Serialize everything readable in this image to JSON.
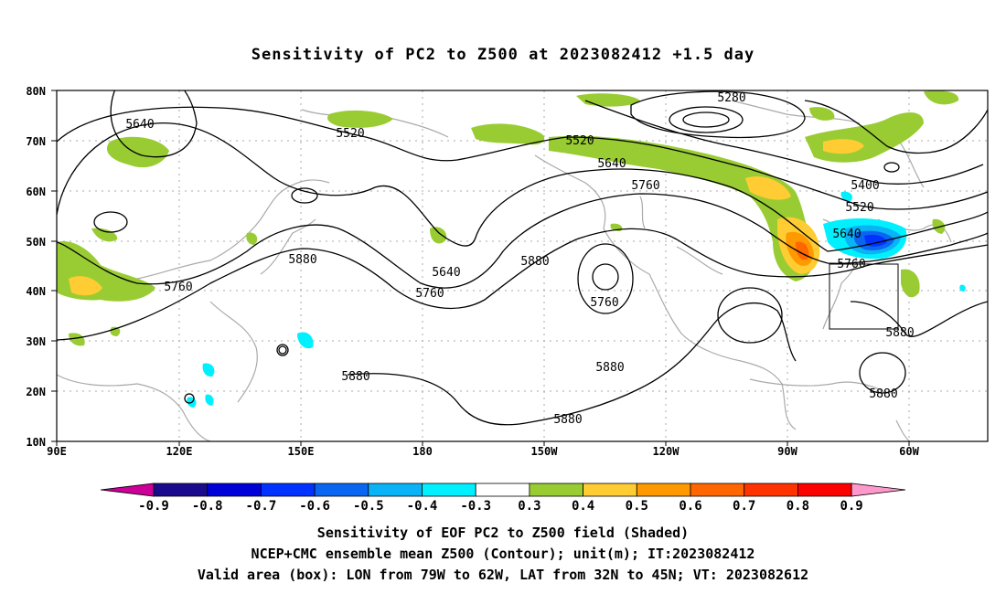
{
  "title": "Sensitivity of PC2 to Z500 at 2023082412 +1.5 day",
  "lat_labels": [
    "80N",
    "70N",
    "60N",
    "50N",
    "40N",
    "30N",
    "20N",
    "10N"
  ],
  "lon_labels": [
    "90E",
    "120E",
    "150E",
    "180",
    "150W",
    "120W",
    "90W",
    "60W"
  ],
  "contour_labels": [
    "5280",
    "5640",
    "5520",
    "5520",
    "5400",
    "5640",
    "5520",
    "5760",
    "5640",
    "5880",
    "5880",
    "5640",
    "5760",
    "5760",
    "5760",
    "5760",
    "5880",
    "5880",
    "5880",
    "5880",
    "5880"
  ],
  "colorbar": {
    "labels": [
      "-0.9",
      "-0.8",
      "-0.7",
      "-0.6",
      "-0.5",
      "-0.4",
      "-0.3",
      "0.3",
      "0.4",
      "0.5",
      "0.6",
      "0.7",
      "0.8",
      "0.9"
    ],
    "colors": [
      "#1a0a8c",
      "#0000d8",
      "#0033ff",
      "#0a66f0",
      "#0ab3f5",
      "#00f0ff",
      "#ffffff",
      "#99cc33",
      "#ffcc33",
      "#ff9900",
      "#ff6600",
      "#ff3300",
      "#ff0000"
    ],
    "low_end_color": "#cc0099",
    "high_end_color": "#ff99cc"
  },
  "captions": {
    "line1": "Sensitivity of EOF PC2 to Z500 field (Shaded)",
    "line2": "NCEP+CMC ensemble mean Z500 (Contour); unit(m); IT:2023082412",
    "line3": "Valid area (box): LON from 79W to 62W, LAT from 32N to 45N; VT: 2023082612"
  }
}
